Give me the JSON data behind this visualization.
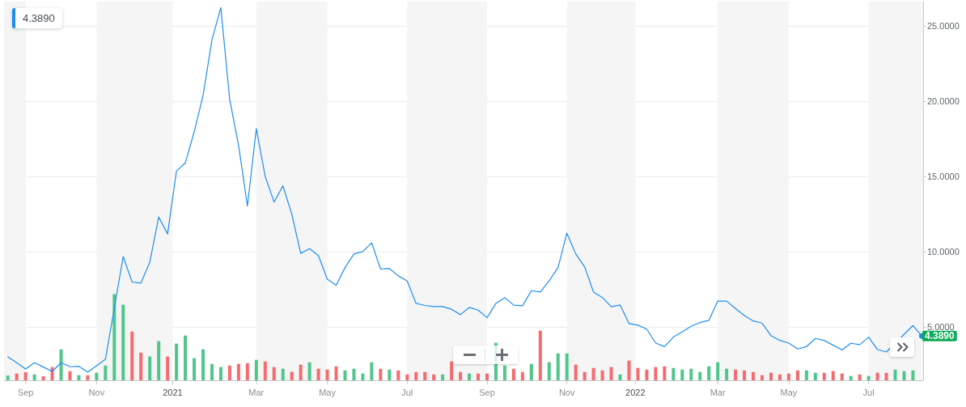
{
  "chart_data": {
    "type": "line",
    "x": [
      "2020-08-24",
      "2020-08-31",
      "2020-09-07",
      "2020-09-14",
      "2020-09-21",
      "2020-09-28",
      "2020-10-05",
      "2020-10-12",
      "2020-10-19",
      "2020-10-26",
      "2020-11-02",
      "2020-11-09",
      "2020-11-16",
      "2020-11-23",
      "2020-11-30",
      "2020-12-07",
      "2020-12-14",
      "2020-12-21",
      "2020-12-28",
      "2021-01-04",
      "2021-01-11",
      "2021-01-18",
      "2021-01-25",
      "2021-02-01",
      "2021-02-08",
      "2021-02-15",
      "2021-02-22",
      "2021-03-01",
      "2021-03-08",
      "2021-03-15",
      "2021-03-22",
      "2021-03-29",
      "2021-04-05",
      "2021-04-12",
      "2021-04-19",
      "2021-04-26",
      "2021-05-03",
      "2021-05-10",
      "2021-05-17",
      "2021-05-24",
      "2021-05-31",
      "2021-06-07",
      "2021-06-14",
      "2021-06-21",
      "2021-06-28",
      "2021-07-05",
      "2021-07-12",
      "2021-07-19",
      "2021-07-26",
      "2021-08-02",
      "2021-08-09",
      "2021-08-16",
      "2021-08-23",
      "2021-08-30",
      "2021-09-06",
      "2021-09-13",
      "2021-09-20",
      "2021-09-27",
      "2021-10-04",
      "2021-10-11",
      "2021-10-18",
      "2021-10-25",
      "2021-11-01",
      "2021-11-08",
      "2021-11-15",
      "2021-11-22",
      "2021-11-29",
      "2021-12-06",
      "2021-12-13",
      "2021-12-20",
      "2021-12-27",
      "2022-01-03",
      "2022-01-10",
      "2022-01-17",
      "2022-01-24",
      "2022-01-31",
      "2022-02-07",
      "2022-02-14",
      "2022-02-21",
      "2022-02-28",
      "2022-03-07",
      "2022-03-14",
      "2022-03-21",
      "2022-03-28",
      "2022-04-04",
      "2022-04-11",
      "2022-04-18",
      "2022-04-25",
      "2022-05-02",
      "2022-05-09",
      "2022-05-16",
      "2022-05-23",
      "2022-05-30",
      "2022-06-06",
      "2022-06-13",
      "2022-06-20",
      "2022-06-27",
      "2022-07-04",
      "2022-07-11",
      "2022-07-18",
      "2022-07-25",
      "2022-08-01",
      "2022-08-08",
      "2022-08-15"
    ],
    "xlim": [
      "2020-08-21",
      "2022-08-16"
    ],
    "xticks": [
      {
        "value": "2020-09-07",
        "label": "Sep"
      },
      {
        "value": "2020-11-02",
        "label": "Nov"
      },
      {
        "value": "2021-01-01",
        "label": "2021"
      },
      {
        "value": "2021-03-08",
        "label": "Mar"
      },
      {
        "value": "2021-05-03",
        "label": "May"
      },
      {
        "value": "2021-07-05",
        "label": "Jul"
      },
      {
        "value": "2021-09-06",
        "label": "Sep"
      },
      {
        "value": "2021-11-08",
        "label": "Nov"
      },
      {
        "value": "2022-01-01",
        "label": "2022"
      },
      {
        "value": "2022-03-07",
        "label": "Mar"
      },
      {
        "value": "2022-05-02",
        "label": "May"
      },
      {
        "value": "2022-07-04",
        "label": "Jul"
      }
    ],
    "ylim": [
      1.45,
      26.6
    ],
    "yticks": [
      {
        "value": 5,
        "label": "5.0000"
      },
      {
        "value": 10,
        "label": "10.0000"
      },
      {
        "value": 15,
        "label": "15.0000"
      },
      {
        "value": 20,
        "label": "20.0000"
      },
      {
        "value": 25,
        "label": "25.0000"
      }
    ],
    "grid": "y",
    "series": [
      {
        "color": "#1e8ef0",
        "values": [
          3.01,
          2.62,
          2.2,
          2.62,
          2.33,
          2.04,
          2.62,
          2.35,
          2.38,
          1.99,
          2.42,
          2.85,
          6.26,
          9.67,
          7.98,
          7.91,
          9.3,
          12.3,
          11.17,
          15.35,
          15.89,
          17.95,
          20.37,
          24.05,
          26.2,
          20.1,
          17.05,
          13.02,
          18.17,
          14.99,
          13.29,
          14.36,
          12.48,
          9.88,
          10.2,
          9.73,
          8.17,
          7.76,
          8.94,
          9.84,
          10.0,
          10.58,
          8.84,
          8.87,
          8.39,
          8.05,
          6.56,
          6.42,
          6.35,
          6.35,
          6.17,
          5.81,
          6.29,
          6.11,
          5.61,
          6.56,
          6.95,
          6.44,
          6.4,
          7.4,
          7.31,
          8.05,
          8.94,
          11.22,
          9.84,
          8.98,
          7.31,
          6.95,
          6.33,
          6.45,
          5.22,
          5.11,
          4.85,
          3.92,
          3.69,
          4.32,
          4.68,
          5.04,
          5.29,
          5.43,
          6.71,
          6.71,
          6.22,
          5.75,
          5.39,
          5.25,
          4.41,
          4.1,
          3.92,
          3.53,
          3.69,
          4.23,
          4.1,
          3.78,
          3.46,
          3.91,
          3.82,
          4.32,
          3.49,
          3.33,
          null,
          null,
          5.09,
          4.389
        ]
      },
      {
        "type": "bar",
        "values": [
          1.77,
          1.9,
          1.99,
          1.84,
          1.72,
          2.33,
          3.51,
          2.06,
          1.79,
          1.79,
          1.95,
          2.43,
          7.17,
          6.47,
          4.69,
          3.29,
          3.03,
          4.05,
          3.03,
          3.89,
          4.42,
          2.92,
          3.51,
          2.54,
          2.33,
          2.43,
          2.54,
          2.59,
          2.81,
          2.7,
          2.33,
          2.22,
          2.01,
          2.49,
          2.65,
          2.22,
          2.16,
          2.38,
          2.11,
          2.22,
          1.9,
          2.65,
          2.22,
          2.16,
          2.11,
          1.84,
          2.0,
          2.0,
          1.84,
          1.84,
          2.7,
          2.0,
          1.9,
          1.9,
          1.9,
          3.94,
          2.43,
          2.22,
          2.0,
          2.54,
          4.75,
          2.65,
          3.24,
          3.24,
          2.49,
          2.0,
          2.27,
          2.11,
          2.33,
          1.84,
          2.76,
          2.27,
          2.16,
          2.33,
          2.38,
          2.27,
          2.16,
          2.22,
          2.0,
          2.38,
          2.65,
          2.22,
          2.16,
          2.11,
          2.0,
          1.79,
          1.95,
          1.84,
          1.9,
          2.11,
          2.11,
          1.95,
          1.95,
          2.06,
          1.9,
          1.74,
          1.84,
          1.74,
          1.95,
          1.95,
          2.16,
          2.06,
          2.11,
          null
        ],
        "colors": [
          "#50c68b",
          "#f56b6e",
          "#f56b6e",
          "#50c68b",
          "#f56b6e",
          "#f56b6e",
          "#50c68b",
          "#f56b6e",
          "#50c68b",
          "#f56b6e",
          "#50c68b",
          "#50c68b",
          "#50c68b",
          "#50c68b",
          "#f56b6e",
          "#f56b6e",
          "#50c68b",
          "#50c68b",
          "#f56b6e",
          "#50c68b",
          "#50c68b",
          "#50c68b",
          "#50c68b",
          "#50c68b",
          "#50c68b",
          "#f56b6e",
          "#f56b6e",
          "#f56b6e",
          "#50c68b",
          "#f56b6e",
          "#f56b6e",
          "#50c68b",
          "#f56b6e",
          "#f56b6e",
          "#50c68b",
          "#f56b6e",
          "#f56b6e",
          "#f56b6e",
          "#50c68b",
          "#50c68b",
          "#50c68b",
          "#50c68b",
          "#f56b6e",
          "#50c68b",
          "#f56b6e",
          "#f56b6e",
          "#f56b6e",
          "#f56b6e",
          "#f56b6e",
          "#50c68b",
          "#f56b6e",
          "#f56b6e",
          "#50c68b",
          "#f56b6e",
          "#f56b6e",
          "#50c68b",
          "#50c68b",
          "#f56b6e",
          "#f56b6e",
          "#50c68b",
          "#f56b6e",
          "#50c68b",
          "#50c68b",
          "#50c68b",
          "#f56b6e",
          "#f56b6e",
          "#f56b6e",
          "#f56b6e",
          "#f56b6e",
          "#50c68b",
          "#f56b6e",
          "#f56b6e",
          "#f56b6e",
          "#f56b6e",
          "#f56b6e",
          "#50c68b",
          "#50c68b",
          "#50c68b",
          "#50c68b",
          "#50c68b",
          "#50c68b",
          "#50c68b",
          "#f56b6e",
          "#f56b6e",
          "#f56b6e",
          "#f56b6e",
          "#f56b6e",
          "#f56b6e",
          "#f56b6e",
          "#f56b6e",
          "#50c68b",
          "#50c68b",
          "#f56b6e",
          "#f56b6e",
          "#f56b6e",
          "#50c68b",
          "#f56b6e",
          "#50c68b",
          "#f56b6e",
          "#f56b6e",
          "#50c68b",
          "#50c68b",
          "#50c68b",
          null
        ]
      }
    ],
    "bands": [
      {
        "axis": "x",
        "from": "2020-08-21",
        "to": "2020-09-07",
        "color": "#f5f5f5"
      },
      {
        "axis": "x",
        "from": "2020-11-02",
        "to": "2021-01-01",
        "color": "#f5f5f5"
      },
      {
        "axis": "x",
        "from": "2021-03-08",
        "to": "2021-05-03",
        "color": "#f5f5f5"
      },
      {
        "axis": "x",
        "from": "2021-07-05",
        "to": "2021-09-06",
        "color": "#f5f5f5"
      },
      {
        "axis": "x",
        "from": "2021-11-08",
        "to": "2022-01-01",
        "color": "#f5f5f5"
      },
      {
        "axis": "x",
        "from": "2022-03-07",
        "to": "2022-05-02",
        "color": "#f5f5f5"
      },
      {
        "axis": "x",
        "from": "2022-07-04",
        "to": "2022-08-16",
        "color": "#f5f5f5"
      }
    ],
    "annotations": [
      "4.3890",
      {
        "text": "4.3890",
        "x": "2022-08-15",
        "y": 4.389
      }
    ]
  }
}
